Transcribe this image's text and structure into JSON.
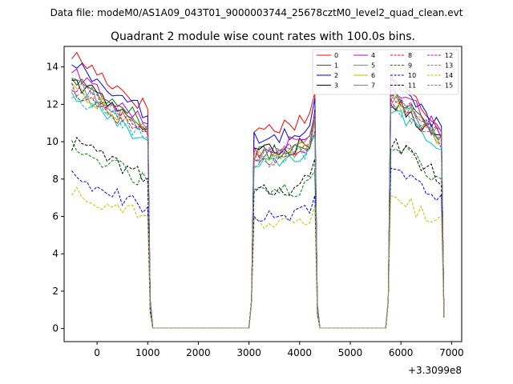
{
  "figure": {
    "suptitle": "Data file: modeM0/AS1A09_043T01_9000003744_25678cztM0_level2_quad_clean.evt"
  },
  "chart_data": {
    "type": "line",
    "title": "Quadrant 2 module wise count rates with 100.0s bins.",
    "xlabel": "",
    "ylabel": "",
    "x_offset_label": "+3.3099e8",
    "xlim": [
      -650,
      7200
    ],
    "ylim": [
      -0.7,
      15.1
    ],
    "xticks": [
      0,
      1000,
      2000,
      3000,
      4000,
      5000,
      6000,
      7000
    ],
    "xtick_labels": [
      "0",
      "1000",
      "2000",
      "3000",
      "4000",
      "5000",
      "6000",
      "7000"
    ],
    "yticks": [
      0,
      2,
      4,
      6,
      8,
      10,
      12,
      14
    ],
    "ytick_labels": [
      "0",
      "2",
      "4",
      "6",
      "8",
      "10",
      "12",
      "14"
    ],
    "grid": false,
    "legend_position": "upper-right",
    "segments": [
      {
        "start": -500,
        "end": 1000
      },
      {
        "start": 3100,
        "end": 4300
      },
      {
        "start": 5800,
        "end": 6850
      }
    ],
    "series": [
      {
        "name": "0",
        "color": "#ff0000",
        "dash": "solid",
        "levels": [
          13.1,
          11.0,
          12.0
        ]
      },
      {
        "name": "1",
        "color": "#008000",
        "dash": "solid",
        "levels": [
          12.1,
          9.6,
          11.4
        ]
      },
      {
        "name": "2",
        "color": "#0000ff",
        "dash": "solid",
        "levels": [
          12.7,
          10.4,
          11.8
        ]
      },
      {
        "name": "3",
        "color": "#000000",
        "dash": "solid",
        "levels": [
          11.9,
          9.7,
          11.0
        ]
      },
      {
        "name": "4",
        "color": "#c000c0",
        "dash": "solid",
        "levels": [
          12.2,
          9.9,
          11.6
        ]
      },
      {
        "name": "5",
        "color": "#00bfbf",
        "dash": "solid",
        "levels": [
          11.2,
          9.0,
          10.6
        ]
      },
      {
        "name": "6",
        "color": "#bfbf00",
        "dash": "solid",
        "levels": [
          11.6,
          9.5,
          11.1
        ]
      },
      {
        "name": "7",
        "color": "#808080",
        "dash": "solid",
        "levels": [
          11.8,
          9.6,
          11.2
        ]
      },
      {
        "name": "8",
        "color": "#ff0000",
        "dash": "dashed",
        "levels": [
          11.5,
          9.4,
          10.9
        ]
      },
      {
        "name": "9",
        "color": "#008000",
        "dash": "dashed",
        "levels": [
          8.7,
          7.4,
          8.8
        ]
      },
      {
        "name": "10",
        "color": "#0000ff",
        "dash": "dashed",
        "levels": [
          7.2,
          6.1,
          7.6
        ]
      },
      {
        "name": "11",
        "color": "#000000",
        "dash": "dashed",
        "levels": [
          8.9,
          7.6,
          8.9
        ]
      },
      {
        "name": "12",
        "color": "#c000c0",
        "dash": "dashed",
        "levels": [
          11.7,
          9.6,
          11.3
        ]
      },
      {
        "name": "13",
        "color": "#00bfbf",
        "dash": "dashed",
        "levels": [
          11.3,
          9.2,
          10.9
        ]
      },
      {
        "name": "14",
        "color": "#bfbf00",
        "dash": "dashed",
        "levels": [
          6.6,
          5.7,
          6.3
        ]
      },
      {
        "name": "15",
        "color": "#808080",
        "dash": "dashed",
        "levels": [
          11.6,
          9.5,
          11.0
        ]
      }
    ]
  }
}
